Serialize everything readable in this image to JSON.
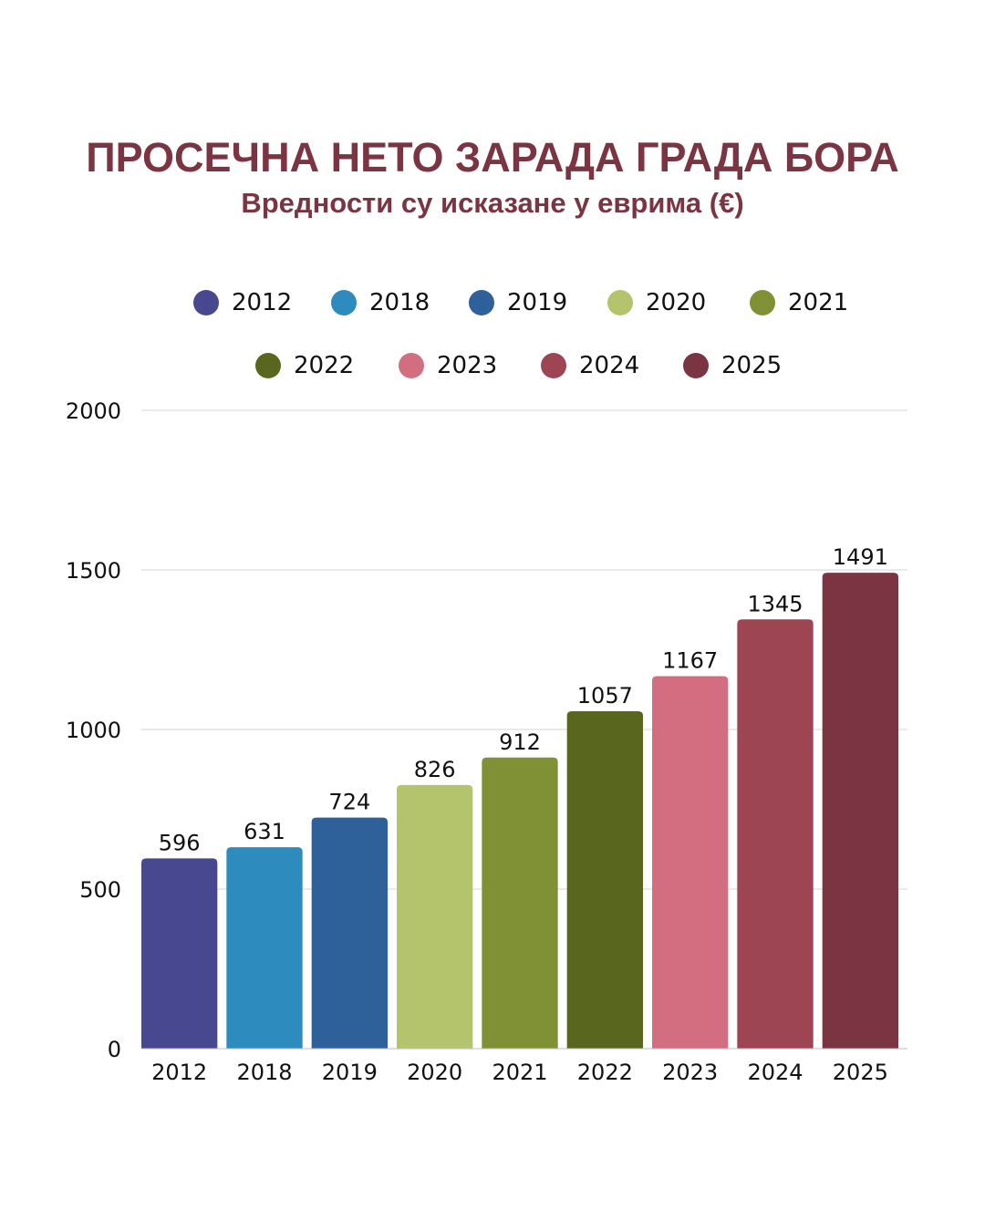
{
  "title": "ПРОСЕЧНА НЕТО ЗАРАДА ГРАДА БОРА",
  "subtitle": "Вредности су исказане у еврима (€)",
  "chart_data": {
    "type": "bar",
    "title": "ПРОСЕЧНА НЕТО ЗАРАДА ГРАДА БОРА",
    "subtitle": "Вредности су исказане у еврима (€)",
    "xlabel": "",
    "ylabel": "",
    "categories": [
      "2012",
      "2018",
      "2019",
      "2020",
      "2021",
      "2022",
      "2023",
      "2024",
      "2025"
    ],
    "values": [
      596,
      631,
      724,
      826,
      912,
      1057,
      1167,
      1345,
      1491
    ],
    "colors": [
      "#474890",
      "#2e8bbd",
      "#2e619a",
      "#b4c46c",
      "#809135",
      "#59671e",
      "#d36e80",
      "#9e4554",
      "#7b3442"
    ],
    "ylim": [
      0,
      2000
    ],
    "yticks": [
      "0",
      "500",
      "1000",
      "1500",
      "2000"
    ],
    "grid": true,
    "legend": "top-center"
  }
}
